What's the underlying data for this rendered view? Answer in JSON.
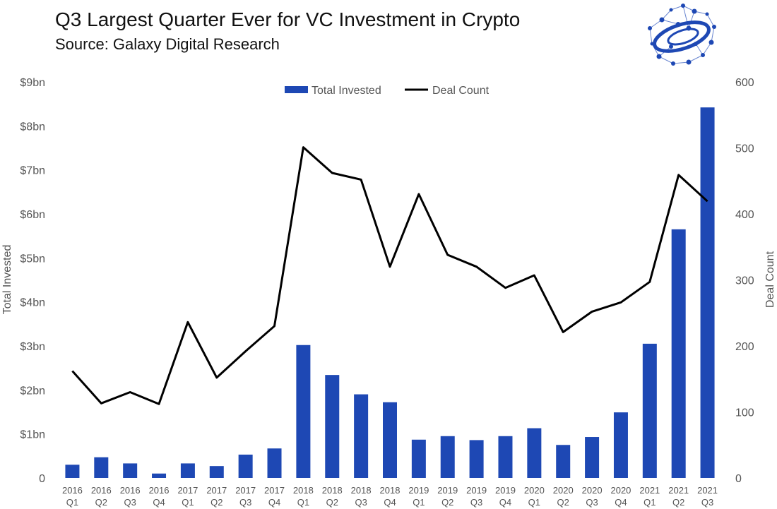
{
  "header": {
    "title": "Q3 Largest Quarter Ever for VC Investment in Crypto",
    "subtitle": "Source: Galaxy Digital Research"
  },
  "colors": {
    "bar": "#1e48b4",
    "line": "#000000",
    "text": "#555555",
    "logo": "#1e48b4"
  },
  "logo": {
    "icon": "galaxy-network-logo"
  },
  "chart_data": {
    "type": "bar",
    "title": "Q3 Largest Quarter Ever for VC Investment in Crypto",
    "categories": [
      [
        "2016",
        "Q1"
      ],
      [
        "2016",
        "Q2"
      ],
      [
        "2016",
        "Q3"
      ],
      [
        "2016",
        "Q4"
      ],
      [
        "2017",
        "Q1"
      ],
      [
        "2017",
        "Q2"
      ],
      [
        "2017",
        "Q3"
      ],
      [
        "2017",
        "Q4"
      ],
      [
        "2018",
        "Q1"
      ],
      [
        "2018",
        "Q2"
      ],
      [
        "2018",
        "Q3"
      ],
      [
        "2018",
        "Q4"
      ],
      [
        "2019",
        "Q1"
      ],
      [
        "2019",
        "Q2"
      ],
      [
        "2019",
        "Q3"
      ],
      [
        "2019",
        "Q4"
      ],
      [
        "2020",
        "Q1"
      ],
      [
        "2020",
        "Q2"
      ],
      [
        "2020",
        "Q3"
      ],
      [
        "2020",
        "Q4"
      ],
      [
        "2021",
        "Q1"
      ],
      [
        "2021",
        "Q2"
      ],
      [
        "2021",
        "Q3"
      ]
    ],
    "series": [
      {
        "name": "Total Invested",
        "type": "bar",
        "axis": "left",
        "values": [
          0.3,
          0.47,
          0.33,
          0.1,
          0.33,
          0.27,
          0.53,
          0.67,
          3.02,
          2.34,
          1.9,
          1.72,
          0.87,
          0.95,
          0.86,
          0.95,
          1.13,
          0.75,
          0.93,
          1.49,
          3.05,
          5.65,
          8.42
        ]
      },
      {
        "name": "Deal Count",
        "type": "line",
        "axis": "right",
        "values": [
          162,
          113,
          130,
          112,
          236,
          152,
          192,
          230,
          501,
          462,
          452,
          320,
          430,
          338,
          320,
          288,
          307,
          221,
          252,
          266,
          297,
          459,
          419
        ]
      }
    ],
    "ylabel": "Total Invested",
    "y2label": "Deal Count",
    "ylim": [
      0,
      9
    ],
    "y2lim": [
      0,
      600
    ],
    "yticks": [
      "0",
      "$1bn",
      "$2bn",
      "$3bn",
      "$4bn",
      "$5bn",
      "$6bn",
      "$7bn",
      "$8bn",
      "$9bn"
    ],
    "y2ticks": [
      "0",
      "100",
      "200",
      "300",
      "400",
      "500",
      "600"
    ],
    "legend": [
      "Total Invested",
      "Deal Count"
    ],
    "legend_position": "top-center",
    "grid": false
  }
}
